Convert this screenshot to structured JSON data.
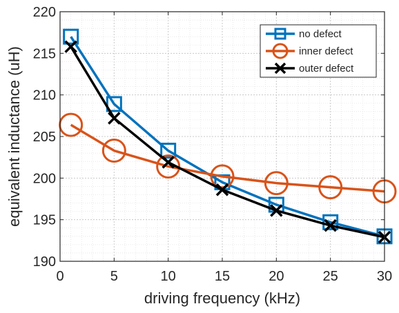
{
  "chart_data": {
    "type": "line",
    "title": "",
    "xlabel": "driving frequency (kHz)",
    "ylabel": "equivalent inductance (uH)",
    "xlim": [
      0,
      30
    ],
    "ylim": [
      190,
      220
    ],
    "xticks": [
      0,
      5,
      10,
      15,
      20,
      25,
      30
    ],
    "yticks": [
      190,
      195,
      200,
      205,
      210,
      215,
      220
    ],
    "xtick_labels": [
      "0",
      "5",
      "10",
      "15",
      "20",
      "25",
      "30"
    ],
    "ytick_labels": [
      "190",
      "195",
      "200",
      "205",
      "210",
      "215",
      "220"
    ],
    "grid": "major and minor, dotted",
    "legend_position": "top-right",
    "x": [
      1,
      5,
      10,
      15,
      20,
      25,
      30
    ],
    "series": [
      {
        "name": "no defect",
        "marker": "square",
        "color": "#0072BD",
        "values": [
          217.0,
          208.9,
          203.3,
          199.5,
          196.8,
          194.7,
          193.0
        ]
      },
      {
        "name": "inner defect",
        "marker": "circle",
        "color": "#D95319",
        "values": [
          206.4,
          203.3,
          201.4,
          200.2,
          199.4,
          198.9,
          198.4
        ]
      },
      {
        "name": "outer defect",
        "marker": "x",
        "color": "#000000",
        "values": [
          215.8,
          207.2,
          201.9,
          198.6,
          196.1,
          194.3,
          192.9
        ]
      }
    ]
  }
}
